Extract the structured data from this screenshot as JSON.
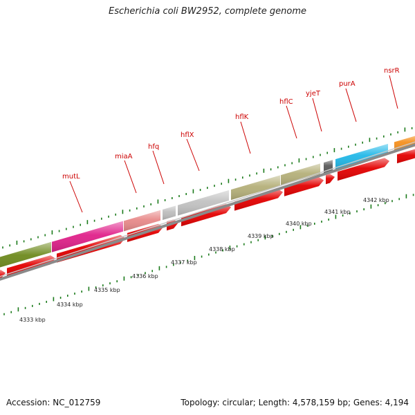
{
  "title": "Escherichia coli BW2952, complete genome",
  "accession": "Accession: NC_012759",
  "summary": "Topology: circular; Length: 4,578,159 bp; Genes: 4,194",
  "colors": {
    "strand_arrow": "#e30000",
    "backbone": "#8a8a8a",
    "gene_label": "#cc0000",
    "tick": "#1a7a1a"
  },
  "genes": [
    {
      "name": "",
      "color": "#6e8a1e"
    },
    {
      "name": "mutL",
      "color": "#e0218a"
    },
    {
      "name": "miaA",
      "color": "#e88a8a"
    },
    {
      "name": "hfq",
      "color": "#bdbdbd"
    },
    {
      "name": "hflX",
      "color": "#c2c2c2"
    },
    {
      "name": "hflK",
      "color": "#b5b07a"
    },
    {
      "name": "hflC",
      "color": "#b5b07a"
    },
    {
      "name": "yjeT",
      "color": "#5a5a5a"
    },
    {
      "name": "purA",
      "color": "#22b8e8"
    },
    {
      "name": "nsrR",
      "color": "#f5901e"
    }
  ],
  "scale_labels": [
    "4333 kbp",
    "4334 kbp",
    "4335 kbp",
    "4336 kbp",
    "4337 kbp",
    "4338 kbp",
    "4339 kbp",
    "4340 kbp",
    "4341 kbp",
    "4342 kbp"
  ]
}
